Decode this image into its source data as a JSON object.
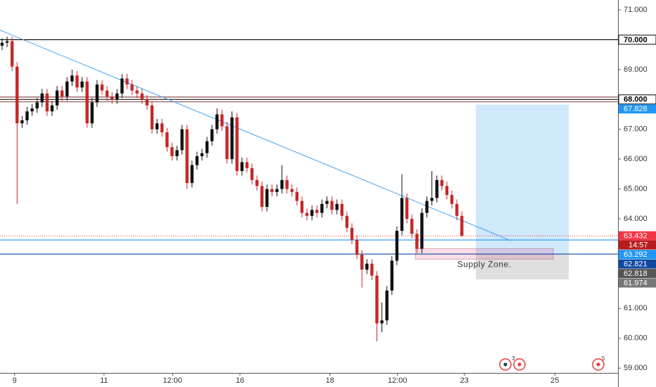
{
  "chart_data": {
    "type": "candlestick",
    "up_color": "#111111",
    "down_color": "#c62828",
    "open": [
      69.8,
      69.9,
      69.95,
      69.1,
      67.2,
      67.3,
      67.6,
      67.7,
      67.9,
      68.2,
      67.6,
      67.8,
      68.3,
      68.1,
      68.6,
      68.8,
      68.4,
      68.6,
      67.2,
      67.9,
      68.5,
      68.3,
      68.1,
      68.0,
      68.2,
      68.7,
      68.5,
      68.3,
      68.2,
      68.0,
      67.8,
      67.0,
      67.2,
      66.9,
      66.4,
      66.1,
      66.3,
      67.0,
      65.2,
      65.8,
      66.1,
      66.2,
      66.6,
      67.0,
      67.5,
      67.1,
      66.0,
      67.4,
      65.6,
      65.9,
      65.7,
      65.3,
      65.1,
      64.4,
      65.0,
      64.9,
      65.0,
      65.3,
      65.0,
      64.9,
      64.6,
      64.2,
      64.1,
      64.3,
      64.2,
      64.5,
      64.6,
      64.3,
      64.5,
      64.1,
      63.7,
      63.3,
      62.8,
      62.3,
      62.5,
      62.1,
      60.5,
      60.6,
      61.6,
      62.6,
      63.6,
      64.7,
      64.0,
      63.5,
      63.0,
      64.2,
      64.6,
      64.7,
      65.3,
      65.1,
      64.8,
      64.5,
      64.1
    ],
    "high": [
      70.05,
      70.1,
      70.1,
      69.25,
      67.45,
      67.75,
      67.85,
      68.05,
      68.35,
      68.35,
      67.95,
      68.45,
      68.45,
      68.75,
      69.0,
      68.95,
      68.75,
      68.75,
      68.05,
      68.65,
      68.65,
      68.45,
      68.25,
      68.35,
      68.85,
      68.85,
      68.65,
      68.45,
      68.35,
      68.15,
      67.95,
      67.35,
      67.35,
      67.05,
      66.55,
      66.45,
      67.15,
      67.15,
      65.95,
      66.25,
      66.35,
      66.75,
      67.15,
      67.7,
      67.65,
      67.25,
      67.6,
      67.55,
      66.05,
      66.05,
      65.85,
      65.45,
      65.25,
      65.15,
      65.15,
      65.15,
      65.8,
      65.45,
      65.15,
      65.05,
      64.75,
      64.35,
      64.45,
      64.45,
      64.65,
      64.75,
      64.75,
      64.65,
      64.65,
      64.25,
      63.85,
      63.45,
      62.95,
      62.65,
      62.65,
      62.25,
      61.2,
      61.75,
      62.75,
      63.75,
      65.5,
      64.85,
      64.15,
      63.65,
      64.35,
      64.75,
      65.6,
      65.45,
      65.45,
      65.25,
      64.95,
      64.65,
      64.25
    ],
    "low": [
      69.65,
      69.75,
      68.95,
      64.5,
      67.05,
      67.15,
      67.45,
      67.55,
      67.75,
      67.45,
      67.45,
      67.65,
      67.95,
      67.95,
      68.45,
      68.25,
      68.25,
      67.05,
      67.05,
      67.75,
      68.15,
      67.95,
      67.85,
      67.85,
      68.05,
      68.35,
      68.15,
      68.05,
      67.85,
      67.65,
      66.85,
      66.85,
      66.75,
      66.25,
      65.95,
      65.95,
      66.15,
      65.0,
      65.05,
      65.65,
      65.95,
      66.05,
      66.45,
      66.85,
      66.95,
      65.85,
      65.85,
      65.45,
      65.45,
      65.55,
      65.15,
      64.95,
      64.25,
      64.25,
      64.75,
      64.75,
      64.85,
      64.85,
      64.75,
      64.45,
      64.05,
      63.95,
      63.95,
      64.05,
      64.05,
      64.35,
      64.15,
      64.15,
      63.95,
      63.55,
      63.15,
      62.65,
      61.7,
      62.15,
      61.95,
      59.9,
      60.2,
      60.45,
      61.45,
      62.45,
      63.45,
      63.85,
      63.35,
      62.85,
      62.85,
      64.05,
      64.45,
      64.55,
      64.95,
      64.65,
      64.35,
      63.95,
      63.4
    ],
    "close": [
      69.9,
      69.95,
      69.1,
      67.2,
      67.3,
      67.6,
      67.7,
      67.9,
      68.2,
      67.6,
      67.8,
      68.3,
      68.1,
      68.6,
      68.8,
      68.4,
      68.6,
      67.2,
      67.9,
      68.5,
      68.3,
      68.1,
      68.0,
      68.2,
      68.7,
      68.5,
      68.3,
      68.2,
      68.0,
      67.8,
      67.0,
      67.2,
      66.9,
      66.4,
      66.1,
      66.3,
      67.0,
      65.2,
      65.8,
      66.1,
      66.2,
      66.6,
      67.0,
      67.5,
      67.1,
      66.0,
      67.4,
      65.6,
      65.9,
      65.7,
      65.3,
      65.1,
      64.4,
      65.0,
      64.9,
      65.0,
      65.3,
      65.0,
      64.9,
      64.6,
      64.2,
      64.1,
      64.3,
      64.2,
      64.5,
      64.6,
      64.3,
      64.5,
      64.1,
      63.7,
      63.3,
      62.8,
      62.3,
      62.5,
      62.1,
      60.5,
      60.6,
      61.6,
      62.6,
      63.6,
      64.7,
      64.0,
      63.5,
      63.0,
      64.2,
      64.6,
      64.7,
      65.3,
      65.1,
      64.8,
      64.5,
      64.1,
      63.43
    ],
    "xlim": [
      -0.42,
      123.24
    ],
    "xticks": [
      {
        "value": 2.5,
        "label": "9"
      },
      {
        "value": 20.4,
        "label": "11"
      },
      {
        "value": 34.1,
        "label": "12:00"
      },
      {
        "value": 47.6,
        "label": "16"
      },
      {
        "value": 65.6,
        "label": "18"
      },
      {
        "value": 79.1,
        "label": "12:00"
      },
      {
        "value": 92.5,
        "label": "23"
      },
      {
        "value": 110.6,
        "label": "25"
      }
    ],
    "ylim": [
      58.84,
      71.33
    ],
    "yticks": [
      {
        "value": 71,
        "label": "71.000"
      },
      {
        "value": 69,
        "label": "69.000"
      },
      {
        "value": 67,
        "label": "67.000"
      },
      {
        "value": 66,
        "label": "66.000"
      },
      {
        "value": 65,
        "label": "65.000"
      },
      {
        "value": 64,
        "label": "64.000"
      },
      {
        "value": 61,
        "label": "61.000"
      },
      {
        "value": 60,
        "label": "60.000"
      },
      {
        "value": 59,
        "label": "59.000"
      }
    ],
    "horizontal_lines": [
      {
        "value": 70,
        "label": "70.000",
        "color": "#000000"
      },
      {
        "value": 68.08,
        "color": "#8d5050"
      },
      {
        "value": 68,
        "label": "68.000",
        "color": "#2b1a1a"
      },
      {
        "value": 67.92,
        "color": "#8d5050"
      },
      {
        "value": 63.292,
        "label": "63.292",
        "color": "#2196f3"
      },
      {
        "value": 62.821,
        "label": "62.821",
        "color": "#0d47a1"
      }
    ],
    "current_price": {
      "value": 63.432,
      "label": "63.432",
      "countdown": "14:57",
      "color": "#f23645"
    },
    "trendline": {
      "x": [
        -0.42,
        101.8
      ],
      "y": [
        70.32,
        63.27
      ],
      "color": "#42a5f5"
    },
    "position": {
      "x": [
        94.8,
        113.4
      ],
      "target": 67.828,
      "target_label": "67.828",
      "entry": 62.818,
      "entry_label": "62.818",
      "stop": 61.974,
      "stop_label": "61.974"
    },
    "supply_zone": {
      "x": [
        82.7,
        110.3
      ],
      "top": 63.0,
      "bottom": 62.65,
      "label": "Supply Zone."
    },
    "events": [
      "3",
      "5"
    ]
  }
}
